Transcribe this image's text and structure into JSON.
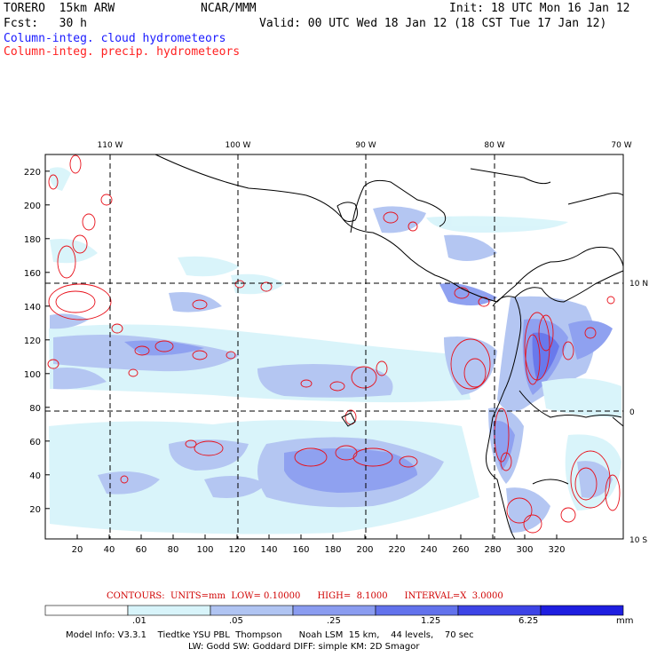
{
  "header": {
    "model": "TORERO  15km ARW",
    "org": "NCAR/MMM",
    "init": "Init: 18 UTC Mon 16 Jan 12",
    "fcst": "Fcst:   30 h",
    "valid": "Valid: 00 UTC Wed 18 Jan 12 (18 CST Tue 17 Jan 12)",
    "line_cloud": "Column-integ. cloud hydrometeors",
    "line_precip": "Column-integ. precip. hydrometeors"
  },
  "axes": {
    "x_ticks": [
      "20",
      "40",
      "60",
      "80",
      "100",
      "120",
      "140",
      "160",
      "180",
      "200",
      "220",
      "240",
      "260",
      "280",
      "300",
      "320"
    ],
    "y_ticks": [
      "20",
      "40",
      "60",
      "80",
      "100",
      "120",
      "140",
      "160",
      "180",
      "200",
      "220"
    ],
    "lon_labels": [
      "110 W",
      "100 W",
      "90 W",
      "80 W",
      "70 W"
    ],
    "lat_labels": [
      "10 N",
      "0",
      "10 S"
    ]
  },
  "contour_info": {
    "text": "CONTOURS:  UNITS=mm  LOW= 0.10000      HIGH=  8.1000      INTERVAL=X  3.0000"
  },
  "legend": {
    "values": [
      ".01",
      ".05",
      ".25",
      "1.25",
      "6.25"
    ],
    "unit": "mm",
    "colors": [
      "#ffffff",
      "#d8f4fa",
      "#b0c4f2",
      "#8a9cf0",
      "#6272ec",
      "#3d44e6",
      "#1e1ee0"
    ]
  },
  "footer": {
    "line1": "Model Info: V3.3.1    Tiedtke YSU PBL  Thompson      Noah LSM  15 km,    44 levels,    70 sec",
    "line2": "LW: Godd SW: Goddard DIFF: simple KM: 2D Smagor"
  },
  "colors": {
    "cloud_text": "#1a1aff",
    "precip_text": "#ff2020",
    "precip_contour": "#e8101a"
  }
}
